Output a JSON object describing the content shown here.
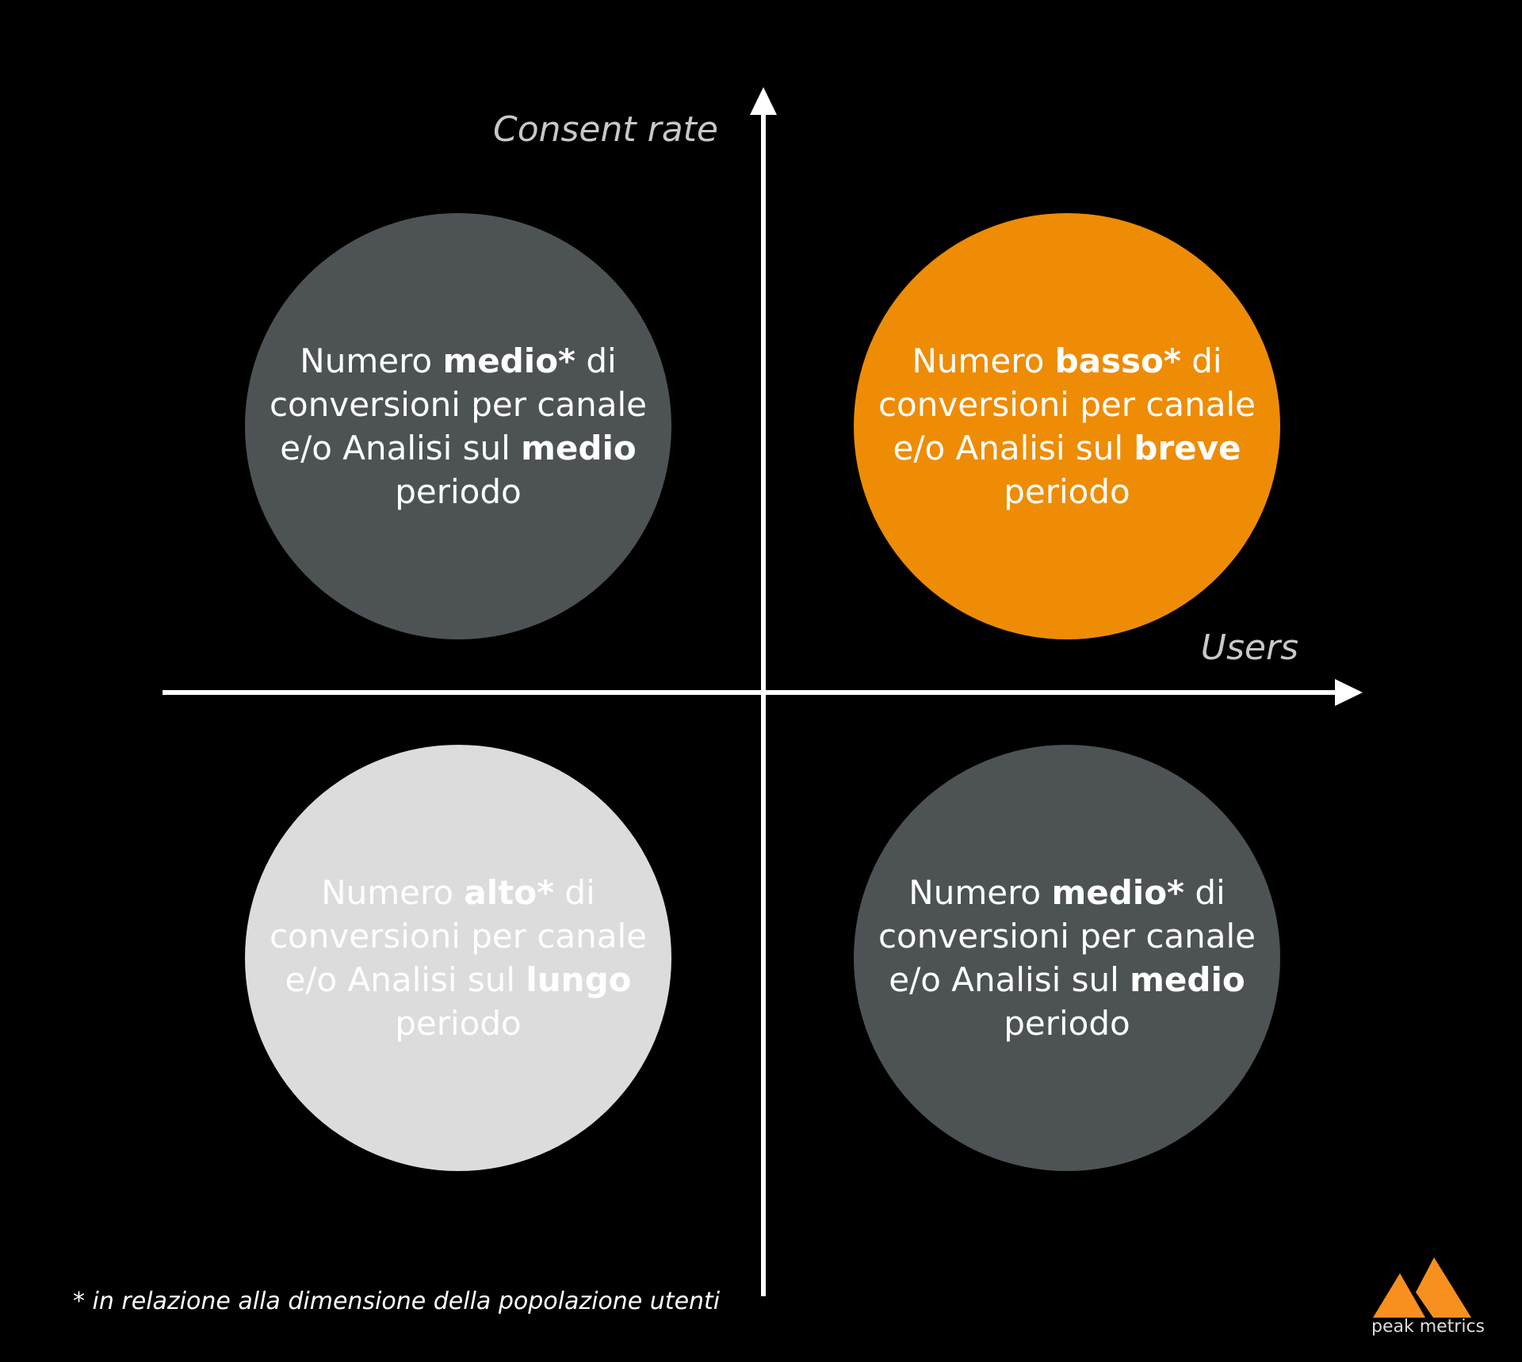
{
  "axes": {
    "y_label": "Consent rate",
    "x_label": "Users"
  },
  "colors": {
    "medium": "#4d5354",
    "accent": "#ee8c05",
    "light": "#dcdcdc",
    "background": "#000000"
  },
  "quadrants": {
    "top_left": {
      "l1a": "Numero ",
      "l1b": "medio*",
      "l1c": " di",
      "l2": "conversioni per canale",
      "l3a": "e/o Analisi sul ",
      "l3b": "medio",
      "l4": "periodo"
    },
    "top_right": {
      "l1a": "Numero ",
      "l1b": "basso*",
      "l1c": " di",
      "l2": "conversioni per canale",
      "l3a": "e/o Analisi sul ",
      "l3b": "breve",
      "l4": "periodo"
    },
    "bottom_left": {
      "l1a": "Numero ",
      "l1b": "alto*",
      "l1c": " di",
      "l2": "conversioni per canale",
      "l3a": "e/o Analisi sul ",
      "l3b": "lungo",
      "l4": "periodo"
    },
    "bottom_right": {
      "l1a": "Numero ",
      "l1b": "medio*",
      "l1c": " di",
      "l2": "conversioni per canale",
      "l3a": "e/o Analisi sul ",
      "l3b": "medio",
      "l4": "periodo"
    }
  },
  "footnote": "* in relazione alla dimensione della popolazione utenti",
  "logo": {
    "text": "peak metrics"
  }
}
